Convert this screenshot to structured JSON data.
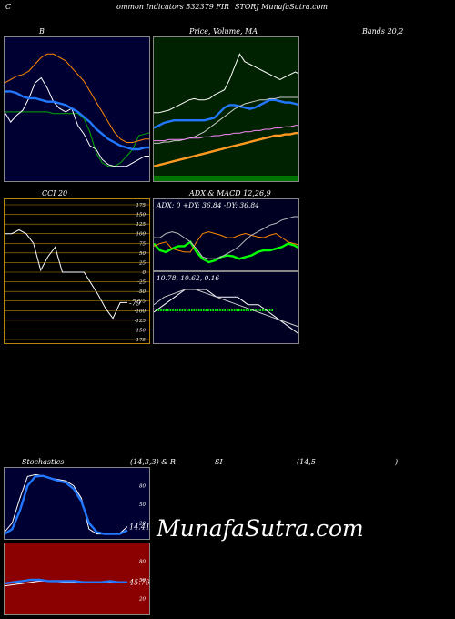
{
  "header": {
    "c": "C",
    "left": "ommon Indicators 532379 FIR",
    "right": "STORJ MunafaSutra.com"
  },
  "labels": {
    "b": "B",
    "price": "Price, Volume, MA",
    "bands": "Bands 20,2",
    "cci": "CCI 20",
    "adx_macd": "ADX & MACD 12,26,9",
    "adx_values": "ADX: 0  +DY: 36.84  -DY: 36.84",
    "macd_values": "10.78,  10.62,  0.16",
    "stoch": "Stochastics",
    "stoch_params": "(14,3,3) & R",
    "si": "SI",
    "rsi_params": "(14,5",
    "close_paren": ")",
    "watermark": "MunafaSutra.com"
  },
  "colors": {
    "bollinger_bg": "#000033",
    "price_bg": "#002200",
    "cci_bg": "#000000",
    "stoch_bg": "#000033",
    "rsi_bg": "#8b0000",
    "green": "#00cc00",
    "blue": "#2277ff",
    "orange": "#ff8800"
  },
  "chart_data": [
    {
      "type": "line",
      "panel": "bollinger",
      "series": [
        {
          "color": "#00aa00",
          "values": [
            78,
            78,
            78,
            78,
            78,
            78,
            78,
            78,
            77,
            77,
            77,
            77,
            77,
            74,
            66,
            54,
            48,
            46,
            46,
            48,
            52,
            56,
            64,
            65,
            66
          ]
        },
        {
          "color": "#ffffff",
          "values": [
            78,
            72,
            76,
            79,
            86,
            95,
            98,
            92,
            84,
            80,
            78,
            80,
            70,
            65,
            58,
            56,
            50,
            47,
            46,
            46,
            46,
            48,
            50,
            52,
            52
          ]
        },
        {
          "color": "#2277ff",
          "values": [
            90,
            90,
            89,
            87,
            86,
            86,
            85,
            84,
            84,
            83,
            82,
            80,
            78,
            75,
            72,
            68,
            65,
            62,
            60,
            58,
            57,
            56,
            56,
            57,
            57
          ]
        },
        {
          "color": "#ff8800",
          "values": [
            95,
            97,
            99,
            100,
            102,
            106,
            110,
            112,
            112,
            110,
            108,
            104,
            100,
            96,
            90,
            84,
            78,
            72,
            66,
            62,
            60,
            60,
            61,
            62,
            62
          ]
        }
      ]
    },
    {
      "type": "line",
      "panel": "price",
      "series": [
        {
          "color": "#ffffff",
          "values": [
            52,
            52,
            53,
            54,
            56,
            58,
            60,
            62,
            63,
            62,
            62,
            63,
            66,
            68,
            70,
            78,
            88,
            98,
            92,
            90,
            88,
            86,
            84,
            82,
            80,
            78,
            80,
            82,
            84,
            82
          ]
        },
        {
          "color": "#2277ff",
          "values": [
            40,
            42,
            44,
            45,
            46,
            46,
            46,
            46,
            46,
            46,
            46,
            47,
            48,
            52,
            56,
            58,
            58,
            57,
            56,
            55,
            56,
            58,
            60,
            62,
            62,
            61,
            60,
            60,
            59,
            58
          ]
        },
        {
          "color": "#ff9922",
          "values": [
            10,
            11,
            12,
            13,
            14,
            15,
            16,
            17,
            18,
            19,
            20,
            21,
            22,
            23,
            24,
            25,
            26,
            27,
            28,
            29,
            30,
            31,
            32,
            33,
            34,
            34,
            35,
            35,
            36,
            36
          ]
        },
        {
          "color": "#cccccc",
          "values": [
            28,
            28,
            29,
            29,
            30,
            30,
            31,
            32,
            33,
            35,
            37,
            40,
            43,
            46,
            49,
            52,
            55,
            57,
            59,
            60,
            61,
            62,
            62,
            63,
            63,
            64,
            64,
            64,
            64,
            64
          ]
        },
        {
          "color": "#ff88ff",
          "values": [
            30,
            30,
            30,
            31,
            31,
            31,
            31,
            32,
            32,
            32,
            33,
            33,
            34,
            34,
            35,
            35,
            36,
            36,
            37,
            37,
            38,
            38,
            39,
            39,
            40,
            40,
            41,
            41,
            42,
            42
          ]
        }
      ]
    },
    {
      "type": "line",
      "panel": "cci",
      "ylim": [
        -175,
        175
      ],
      "yticks": [
        175,
        150,
        125,
        100,
        75,
        50,
        25,
        0,
        -25,
        -50,
        -75,
        -100,
        -125,
        -150,
        -175
      ],
      "last_label": "-79",
      "series": [
        {
          "color": "#ffffff",
          "values": [
            100,
            100,
            110,
            100,
            75,
            5,
            40,
            65,
            0,
            0,
            0,
            0,
            -30,
            -60,
            -95,
            -120,
            -79,
            -79
          ]
        }
      ]
    },
    {
      "type": "line",
      "panel": "adx",
      "series": [
        {
          "name": "+DY",
          "color": "#00ff00",
          "values": [
            48,
            40,
            38,
            42,
            45,
            45,
            50,
            38,
            30,
            26,
            28,
            32,
            34,
            33,
            30,
            32,
            34,
            38,
            40,
            40,
            42,
            44,
            48,
            46,
            42
          ]
        },
        {
          "name": "-DY",
          "color": "#ff8800",
          "values": [
            45,
            48,
            50,
            42,
            40,
            38,
            38,
            50,
            60,
            62,
            60,
            58,
            55,
            55,
            58,
            60,
            58,
            56,
            55,
            58,
            60,
            55,
            50,
            48,
            46
          ]
        },
        {
          "name": "ADX",
          "color": "#bbbbbb",
          "values": [
            55,
            55,
            60,
            62,
            60,
            55,
            50,
            42,
            32,
            30,
            30,
            32,
            36,
            40,
            45,
            52,
            58,
            62,
            66,
            70,
            72,
            76,
            78,
            80,
            80
          ]
        }
      ]
    },
    {
      "type": "line",
      "panel": "macd",
      "series": [
        {
          "name": "MACD",
          "color": "#ffffff",
          "values": [
            36,
            38,
            40,
            42,
            42,
            42,
            40,
            40,
            40,
            38,
            38,
            36,
            34,
            32,
            30
          ]
        },
        {
          "name": "Signal",
          "color": "#cccccc",
          "values": [
            38,
            40,
            41,
            42,
            42,
            41,
            40,
            39,
            38,
            37,
            36,
            35,
            34,
            33,
            32
          ]
        }
      ]
    },
    {
      "type": "line",
      "panel": "stochastics",
      "ylim": [
        0,
        100
      ],
      "yticks": [
        80,
        50,
        20
      ],
      "last_label": "14.41",
      "series": [
        {
          "color": "#ffffff",
          "values": [
            5,
            20,
            60,
            95,
            98,
            96,
            92,
            90,
            88,
            80,
            60,
            10,
            2,
            2,
            2,
            3,
            14
          ]
        },
        {
          "color": "#2277ff",
          "values": [
            2,
            10,
            40,
            80,
            95,
            96,
            92,
            88,
            85,
            75,
            55,
            20,
            5,
            2,
            2,
            2,
            8
          ]
        }
      ]
    },
    {
      "type": "line",
      "panel": "rsi",
      "ylim": [
        0,
        100
      ],
      "yticks": [
        80,
        50,
        20
      ],
      "last_label": "45.79",
      "series": [
        {
          "color": "#ffffff",
          "values": [
            40,
            42,
            44,
            46,
            48,
            48,
            47,
            46,
            46,
            46,
            46,
            46,
            46,
            46,
            46
          ]
        },
        {
          "color": "#2277ff",
          "values": [
            44,
            46,
            48,
            50,
            50,
            48,
            48,
            48,
            48,
            46,
            46,
            46,
            48,
            46,
            46
          ]
        }
      ]
    }
  ]
}
